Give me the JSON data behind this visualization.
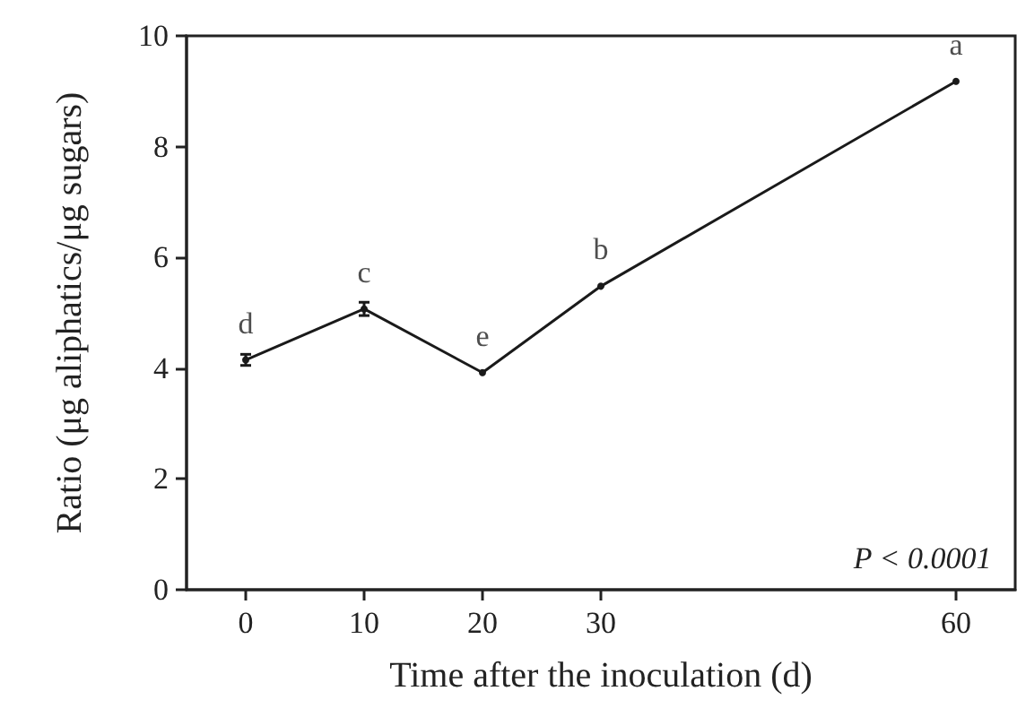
{
  "chart_data": {
    "type": "line",
    "xlabel": "Time after the inoculation (d)",
    "ylabel": "Ratio (μg aliphatics/μg sugars)",
    "x": [
      0,
      10,
      20,
      30,
      60
    ],
    "series": [
      {
        "color": "#1a1a1a",
        "values": [
          4.15,
          5.07,
          3.92,
          5.48,
          9.18
        ],
        "errors": [
          0.1,
          0.12,
          null,
          null,
          null
        ]
      }
    ],
    "xlim": [
      -5,
      65
    ],
    "xticks": [
      0,
      10,
      20,
      30,
      60
    ],
    "ylim": [
      0,
      10
    ],
    "yticks": [
      0,
      2,
      4,
      6,
      8,
      10
    ],
    "grid": false,
    "marker": "circle",
    "line_style": "solid",
    "annotations": [
      {
        "text": "d",
        "x": 0,
        "y": 4.15
      },
      {
        "text": "c",
        "x": 10,
        "y": 5.07
      },
      {
        "text": "e",
        "x": 20,
        "y": 3.92
      },
      {
        "text": "b",
        "x": 30,
        "y": 5.48
      },
      {
        "text": "a",
        "x": 60,
        "y": 9.18
      },
      "P < 0.0001"
    ]
  }
}
